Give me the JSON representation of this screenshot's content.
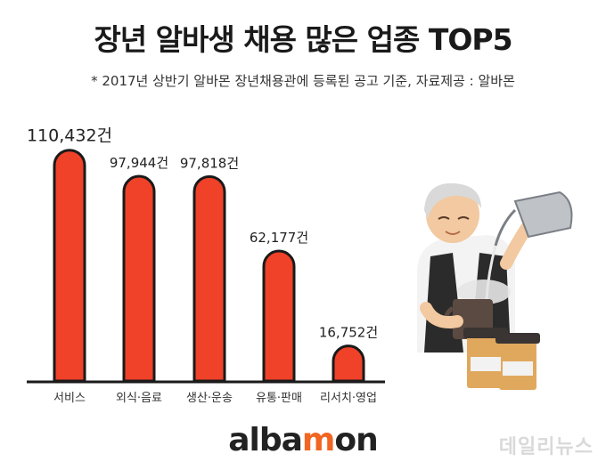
{
  "header": {
    "title": "장년 알바생 채용 많은 업종 TOP5",
    "subtitle": "* 2017년 상반기 알바몬 장년채용관에 등록된 공고 기준, 자료제공 : 알바몬"
  },
  "chart_data": {
    "type": "bar",
    "categories": [
      "서비스",
      "외식·음료",
      "생산·운송",
      "유통·판매",
      "리서치·영업"
    ],
    "values": [
      110432,
      97944,
      97818,
      62177,
      16752
    ],
    "value_labels": [
      "110,432건",
      "97,944건",
      "97,818건",
      "62,177건",
      "16,752건"
    ],
    "ylim": [
      0,
      115000
    ],
    "grid": false,
    "bar_color": "#f04129"
  },
  "branding": {
    "logo_main": "alba",
    "logo_accent": "m",
    "logo_tail": "on",
    "watermark": "데일리뉴스"
  },
  "colors": {
    "bar": "#f04129",
    "logo_accent": "#f26522"
  }
}
